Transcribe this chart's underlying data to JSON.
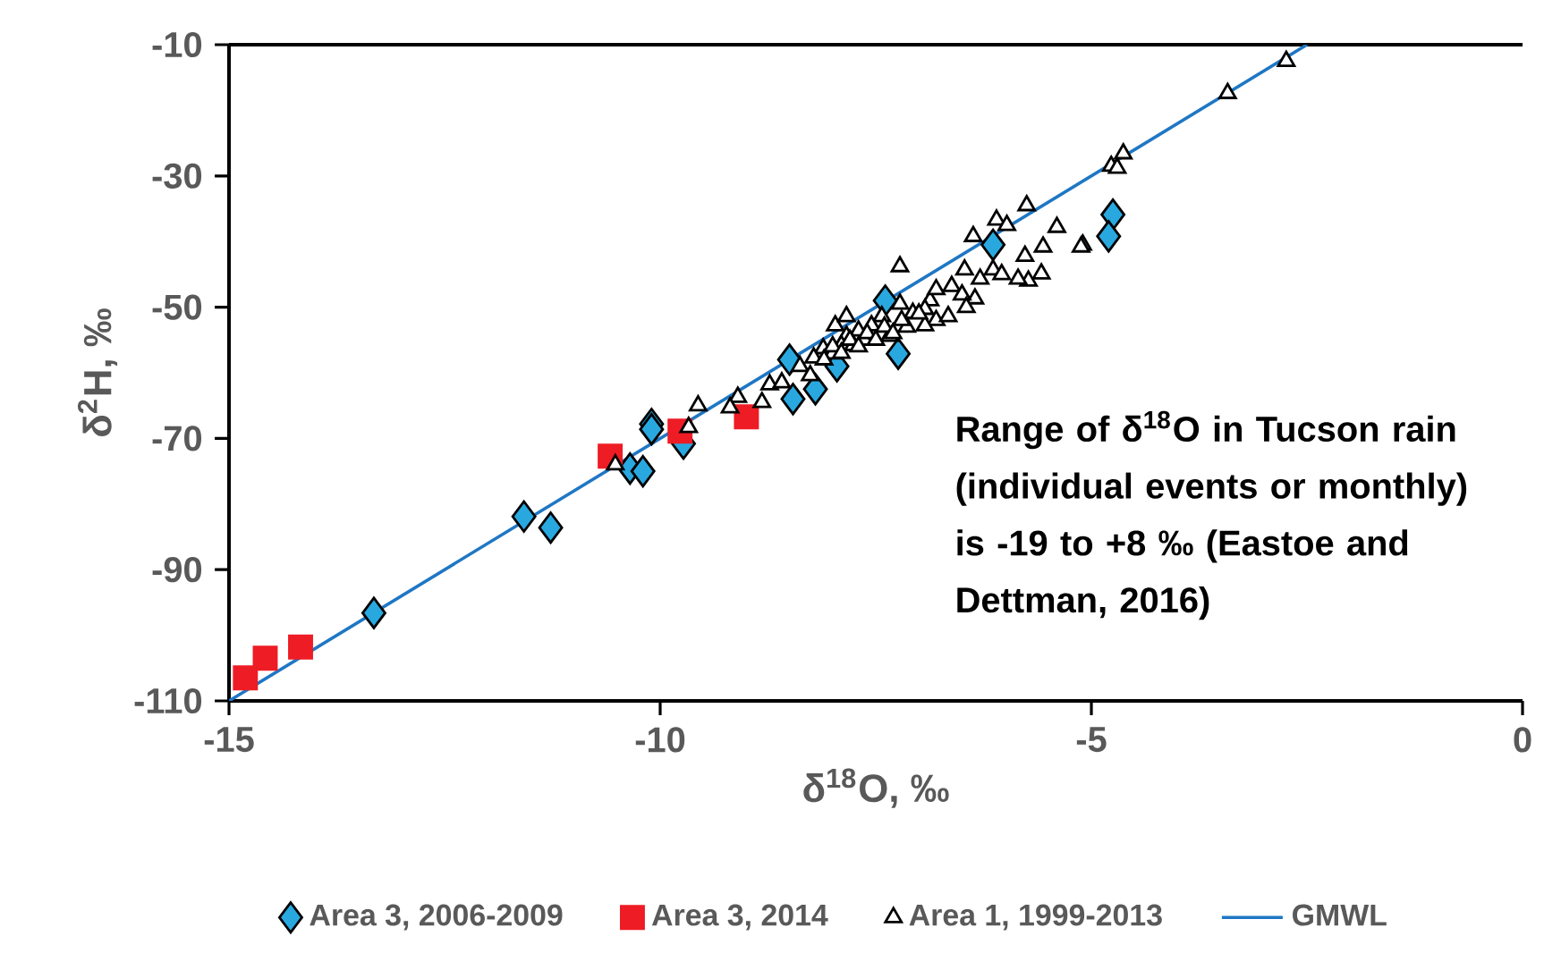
{
  "chart_data": {
    "type": "scatter",
    "xlabel": "δ$^{18}$O, ‰",
    "ylabel": "δ$^{2}$H, ‰",
    "xlim": [
      -15,
      0
    ],
    "xticks": [
      -15,
      -10,
      -5,
      0
    ],
    "ylim": [
      -110,
      -10
    ],
    "yticks": [
      -110,
      -90,
      -70,
      -50,
      -30,
      -10
    ],
    "grid": false,
    "legend": "bottom",
    "annotations": [
      "Range of δ$^{18}$O in Tucson rain (individual events or monthly) is -19 to +8 ‰ (Eastoe and Dettman, 2016)"
    ],
    "series": [
      {
        "name": "Area 3, 2006-2009",
        "marker": "diamond",
        "color": "#29a8e0",
        "x": [
          -13.32,
          -11.58,
          -11.27,
          -10.35,
          -10.2,
          -10.1,
          -10.1,
          -9.73,
          -8.46,
          -8.5,
          -8.2,
          -7.39,
          -7.24,
          -7.95,
          -4.75,
          -4.8,
          -6.14
        ],
        "values": [
          -96.6,
          -81.9,
          -83.6,
          -74.6,
          -75,
          -67.8,
          -68.6,
          -70.8,
          -64,
          -58,
          -62.5,
          -49,
          -57.1,
          -59,
          -35.9,
          -39.2,
          -40.5
        ]
      },
      {
        "name": "Area 3, 2014",
        "marker": "square",
        "color": "#ee1c25",
        "x": [
          -14.81,
          -14.58,
          -14.17,
          -10.58,
          -9.77,
          -9.0
        ],
        "values": [
          -106.5,
          -103.5,
          -101.8,
          -72.7,
          -68.9,
          -66.7
        ]
      },
      {
        "name": "Area 1, 1999-2013",
        "marker": "triangle",
        "color": "#ffffff",
        "x": [
          -2.74,
          -3.42,
          -4.63,
          -4.77,
          -4.7,
          -5.1,
          -5.75,
          -6.1,
          -5.98,
          -5.4,
          -6.37,
          -5.12,
          -5.56,
          -5.77,
          -7.22,
          -6.47,
          -6.14,
          -5.58,
          -5.73,
          -6.04,
          -5.85,
          -6.29,
          -6.62,
          -6.87,
          -6.35,
          -6.5,
          -6.8,
          -6.93,
          -6.8,
          -7.07,
          -7.22,
          -7.43,
          -7.55,
          -7.7,
          -7.84,
          -7.97,
          -7.9,
          -8.11,
          -8.22,
          -8.38,
          -7.76,
          -7.63,
          -7.34,
          -7.14,
          -6.93,
          -6.66,
          -6.45,
          -7.84,
          -8.0,
          -8.26,
          -9.56,
          -9.67,
          -9.1,
          -9.19,
          -8.73,
          -8.82,
          -8.59,
          -10.52,
          -8.0,
          -7.8,
          -7.6,
          -7.4,
          -7.2,
          -7.0,
          -7.9,
          -7.7,
          -7.5,
          -7.3,
          -8.1
        ],
        "values": [
          -12.5,
          -17.4,
          -26.6,
          -28.5,
          -28.8,
          -40.5,
          -34.5,
          -36.7,
          -37.5,
          -37.8,
          -39.2,
          -40.8,
          -40.8,
          -42.2,
          -43.8,
          -44.3,
          -44.3,
          -44.9,
          -46,
          -45,
          -45.7,
          -45.7,
          -46.8,
          -49,
          -48.7,
          -48.1,
          -47.3,
          -50.3,
          -52,
          -50.9,
          -49.5,
          -51.4,
          -52.8,
          -53.6,
          -54.4,
          -52.8,
          -55.8,
          -56.3,
          -57.7,
          -59,
          -55.8,
          -55,
          -54.4,
          -53,
          -52.8,
          -51.4,
          -50,
          -51.4,
          -57.1,
          -60.4,
          -65,
          -68.3,
          -63.7,
          -65.3,
          -61.8,
          -64.5,
          -61.5,
          -74,
          -56,
          -55,
          -54,
          -53,
          -52,
          -51,
          -57,
          -56,
          -55,
          -54,
          -58
        ]
      },
      {
        "name": "GMWL",
        "type": "line",
        "marker": "none",
        "color": "#1f77c4",
        "x": [
          -15,
          -2.5
        ],
        "values": [
          -110,
          -10
        ]
      }
    ]
  }
}
